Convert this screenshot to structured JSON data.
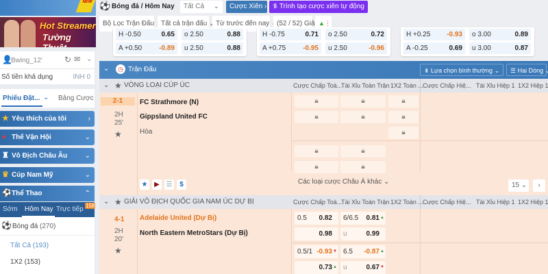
{
  "sidebar": {
    "banner": {
      "new_tag": "NEW",
      "title1": "Hot Streamer",
      "title2": "Tường Thuật"
    },
    "user": {
      "name": "Bwing_12'",
      "balance_label": "Số tiền khả dụng",
      "balance": "INH 0"
    },
    "tabs": [
      {
        "label": "Phiếu Đặt...",
        "active": true
      },
      {
        "label": "Bảng Cược"
      }
    ],
    "items": [
      {
        "label": "Yêu thích của tôi",
        "icon": "star-icon"
      },
      {
        "label": "Thế Vận Hội",
        "icon": "torch-icon"
      },
      {
        "label": "Vô Địch Châu Âu",
        "icon": "trophy-icon"
      },
      {
        "label": "Cúp Nam Mỹ",
        "icon": "cup-icon"
      },
      {
        "label": "Thể Thao",
        "icon": "soccer-ball-icon",
        "expanded": true
      }
    ],
    "sub_tabs": [
      {
        "label": "Sớm"
      },
      {
        "label": "Hôm Nay",
        "active": true
      },
      {
        "label": "Trực tiếp",
        "badge": "158"
      }
    ],
    "sports": [
      {
        "label": "Bóng đá",
        "count": "(270)"
      }
    ],
    "markets": [
      {
        "label": "Tất Cả (193)",
        "active": true
      },
      {
        "label": "1X2 (153)"
      }
    ]
  },
  "topbar": {
    "title": "Bóng đá / Hôm Nay",
    "select": "Tất Cả",
    "parlay": "Cược Xiên",
    "auto_parlay": "Trình tạo cược xiên tự động"
  },
  "filters": [
    "Bộ Lọc Trận Đấu",
    "Tất cả trận đấu",
    "Từ trước đến nay",
    "(52 / 52) Giải"
  ],
  "cards": [
    {
      "rows": [
        [
          "H -0.50",
          "0.65",
          "o 2.50",
          "0.88"
        ],
        [
          "A +0.50",
          "-0.89",
          "u 2.50",
          "0.88"
        ]
      ]
    },
    {
      "rows": [
        [
          "H -0.75",
          "0.71",
          "o 2.50",
          "0.72"
        ],
        [
          "A +0.75",
          "-0.95",
          "u 2.50",
          "-0.96"
        ]
      ]
    },
    {
      "rows": [
        [
          "H +0.25",
          "-0.93",
          "o 3.00",
          "0.89"
        ],
        [
          "A -0.25",
          "0.69",
          "u 3.00",
          "0.87"
        ]
      ]
    }
  ],
  "header": {
    "title": "Trận Đấu",
    "sort": "Lựa chọn bình thường",
    "view": "Hai Dòng"
  },
  "columns": [
    "Cược Chấp Toà...",
    "Tài Xỉu Toàn Trận",
    "1X2 Toàn ...",
    "Cược Chấp Hiệ...",
    "Tài Xỉu Hiệp 1",
    "1X2 Hiệp 1"
  ],
  "leagues": [
    {
      "name": "VÒNG LOẠI CÚP ÚC",
      "match": {
        "score": "2-1",
        "period": "2H",
        "minute": "25'",
        "home": "FC Strathmore (N)",
        "away": "Gippsland United FC",
        "draw": "Hòa",
        "more": "Các loại cược Châu Á khác",
        "page_size": "15"
      }
    },
    {
      "name": "GIẢI VÔ ĐỊCH QUỐC GIA NAM ÚC DỰ BỊ",
      "match": {
        "score": "4-1",
        "period": "2H",
        "minute": "20'",
        "home": "Adelaide United (Dự Bị)",
        "away": "North Eastern MetroStars (Dự Bị)",
        "odds": [
          {
            "hdp": "0.5",
            "hv": "0.82",
            "ou": "6/6.5",
            "ov": "0.81",
            "ovd": "up"
          },
          {
            "hdp": "",
            "hv": "0.98",
            "ou": "u",
            "ov": "0.99"
          },
          {
            "hdp": "0.5/1",
            "hv": "-0.93",
            "hvd": "dn",
            "ou": "6.5",
            "ov": "-0.87",
            "ovd": "up"
          },
          {
            "hdp": "",
            "hv": "0.73",
            "hvd": "up",
            "ou": "u",
            "ov": "0.67",
            "ovd": "dn"
          }
        ]
      }
    }
  ],
  "colors": {
    "accent": "#3b78b7",
    "purple": "#7b2ff0",
    "orange": "#e0731c",
    "peach": "#fbe6d8"
  }
}
